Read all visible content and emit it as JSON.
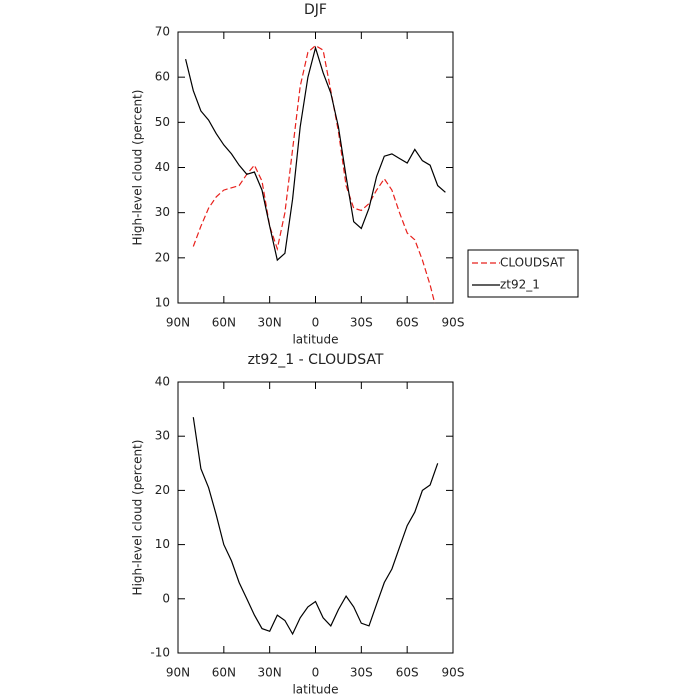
{
  "chart_data": [
    {
      "type": "line",
      "title": "DJF",
      "x_label": "latitude",
      "y_label": "High-level cloud (percent)",
      "xlim": [
        90,
        -90
      ],
      "xticks": [
        {
          "value": 90,
          "label": "90N"
        },
        {
          "value": 60,
          "label": "60N"
        },
        {
          "value": 30,
          "label": "30N"
        },
        0,
        {
          "value": -30,
          "label": "30S"
        },
        {
          "value": -60,
          "label": "60S"
        },
        {
          "value": -90,
          "label": "90S"
        }
      ],
      "ylim": [
        10,
        70
      ],
      "yticks": [
        10,
        20,
        30,
        40,
        50,
        60,
        70
      ],
      "legend": "outside-right",
      "series": [
        {
          "name": "CLOUDSAT",
          "color": "#e8211c",
          "dash": true,
          "x": [
            80,
            75,
            70,
            65,
            60,
            55,
            50,
            45,
            40,
            35,
            30,
            25,
            20,
            15,
            10,
            5,
            0,
            -5,
            -10,
            -15,
            -20,
            -25,
            -30,
            -35,
            -40,
            -45,
            -50,
            -55,
            -60,
            -65,
            -70,
            -75,
            -78
          ],
          "values": [
            22.5,
            27,
            31,
            33.5,
            35,
            35.5,
            36,
            38.5,
            40.5,
            37,
            27,
            22,
            30,
            44,
            58,
            65.5,
            67,
            66,
            57,
            48,
            36,
            31,
            30.5,
            32,
            35,
            37.5,
            35,
            30,
            25.5,
            24,
            19.5,
            14,
            10
          ]
        },
        {
          "name": "zt92_1",
          "color": "#000000",
          "dash": false,
          "x": [
            85,
            80,
            75,
            70,
            65,
            60,
            55,
            50,
            45,
            40,
            35,
            30,
            25,
            20,
            15,
            10,
            5,
            0,
            -5,
            -10,
            -15,
            -20,
            -25,
            -30,
            -35,
            -40,
            -45,
            -50,
            -55,
            -60,
            -65,
            -70,
            -75,
            -80,
            -85
          ],
          "values": [
            64,
            57,
            52.5,
            50.5,
            47.5,
            45,
            43,
            40.5,
            38.5,
            39,
            35,
            27,
            19.5,
            21,
            33,
            49,
            60,
            66.5,
            61,
            56.5,
            49,
            38,
            28,
            26.5,
            31,
            38,
            42.5,
            43,
            42,
            41,
            44,
            41.5,
            40.5,
            36,
            34.5
          ]
        }
      ]
    },
    {
      "type": "line",
      "title": "zt92_1 - CLOUDSAT",
      "x_label": "latitude",
      "y_label": "High-level cloud (percent)",
      "xlim": [
        90,
        -90
      ],
      "xticks": [
        {
          "value": 90,
          "label": "90N"
        },
        {
          "value": 60,
          "label": "60N"
        },
        {
          "value": 30,
          "label": "30N"
        },
        0,
        {
          "value": -30,
          "label": "30S"
        },
        {
          "value": -60,
          "label": "60S"
        },
        {
          "value": -90,
          "label": "90S"
        }
      ],
      "ylim": [
        -10,
        40
      ],
      "yticks": [
        -10,
        0,
        10,
        20,
        30,
        40
      ],
      "series": [
        {
          "color": "#000000",
          "dash": false,
          "x": [
            80,
            75,
            70,
            65,
            60,
            55,
            50,
            45,
            40,
            35,
            30,
            25,
            20,
            15,
            10,
            5,
            0,
            -5,
            -10,
            -15,
            -20,
            -25,
            -30,
            -35,
            -40,
            -45,
            -50,
            -55,
            -60,
            -65,
            -70,
            -75,
            -80
          ],
          "values": [
            33.5,
            24,
            20.5,
            15.5,
            10,
            7,
            3,
            0,
            -3,
            -5.5,
            -6,
            -3,
            -4,
            -6.5,
            -3.5,
            -1.5,
            -0.5,
            -3.5,
            -5,
            -2,
            0.5,
            -1.5,
            -4.5,
            -5,
            -1,
            3,
            5.5,
            9.5,
            13.5,
            16,
            20,
            21,
            25
          ]
        }
      ]
    }
  ]
}
